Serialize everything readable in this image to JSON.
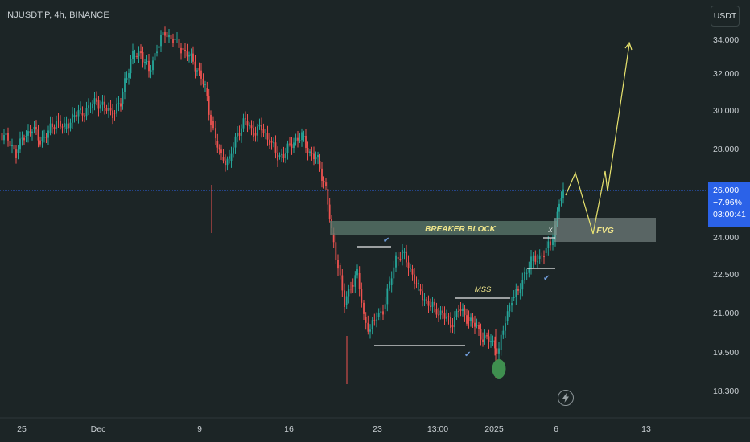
{
  "header": {
    "symbol_title": "INJUSDT.P, 4h, BINANCE"
  },
  "currency": "USDT",
  "price_scale": {
    "ticks": [
      "34.000",
      "32.000",
      "30.000",
      "28.000",
      "24.000",
      "22.500",
      "21.000",
      "19.500",
      "18.300"
    ]
  },
  "last_price": {
    "price": "26.000",
    "change": "−7.96%",
    "countdown": "03:00:41"
  },
  "time_axis": {
    "labels": [
      "25",
      "Dec",
      "9",
      "16",
      "23",
      "13:00",
      "2025",
      "6",
      "13"
    ]
  },
  "annotations": {
    "breaker_block": "BREAKER BLOCK",
    "fvg": "FVG",
    "mss": "MSS",
    "x_mark": "x",
    "check_mark": "✔"
  },
  "colors": {
    "background": "#1c2526",
    "bull_candle": "#26a69a",
    "bear_candle": "#ef5350",
    "projection": "#e8e36e",
    "zone_fill": "#5b7a6e",
    "label_text": "#f0e68c",
    "price_line": "#2b62e8",
    "axis_text": "#c9cfd3"
  },
  "icons": {
    "replay": "lightning-icon"
  }
}
